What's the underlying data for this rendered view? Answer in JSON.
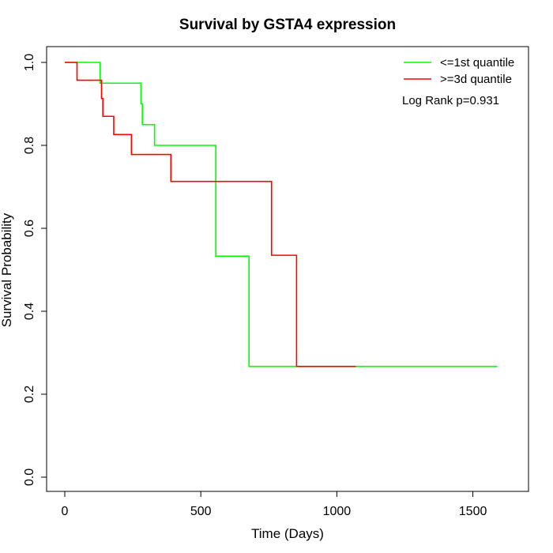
{
  "chart_data": {
    "type": "line",
    "title": "Survival by GSTA4 expression",
    "xlabel": "Time (Days)",
    "ylabel": "Survival Probability",
    "xlim": [
      0,
      1600
    ],
    "ylim": [
      0,
      1.0
    ],
    "xticks": [
      0,
      500,
      1000,
      1500
    ],
    "xtick_labels": [
      "0",
      "500",
      "1000",
      "1500"
    ],
    "yticks": [
      0.0,
      0.2,
      0.4,
      0.6,
      0.8,
      1.0
    ],
    "ytick_labels": [
      "0.0",
      "0.2",
      "0.4",
      "0.6",
      "0.8",
      "1.0"
    ],
    "grid": false,
    "legend_position": "top-right",
    "annotation": "Log Rank p=0.931",
    "series": [
      {
        "name": "<=1st quantile",
        "color": "#00ff00",
        "step": true,
        "x": [
          0,
          130,
          280,
          285,
          330,
          555,
          677,
          1590
        ],
        "y": [
          1.0,
          0.95,
          0.9,
          0.85,
          0.8,
          0.533,
          0.267,
          0.267
        ]
      },
      {
        "name": ">=3d quantile",
        "color": "#ff0000",
        "step": true,
        "x": [
          0,
          45,
          135,
          140,
          180,
          245,
          390,
          760,
          852,
          1070
        ],
        "y": [
          1.0,
          0.957,
          0.913,
          0.87,
          0.826,
          0.778,
          0.713,
          0.535,
          0.267,
          0.267
        ]
      }
    ]
  }
}
